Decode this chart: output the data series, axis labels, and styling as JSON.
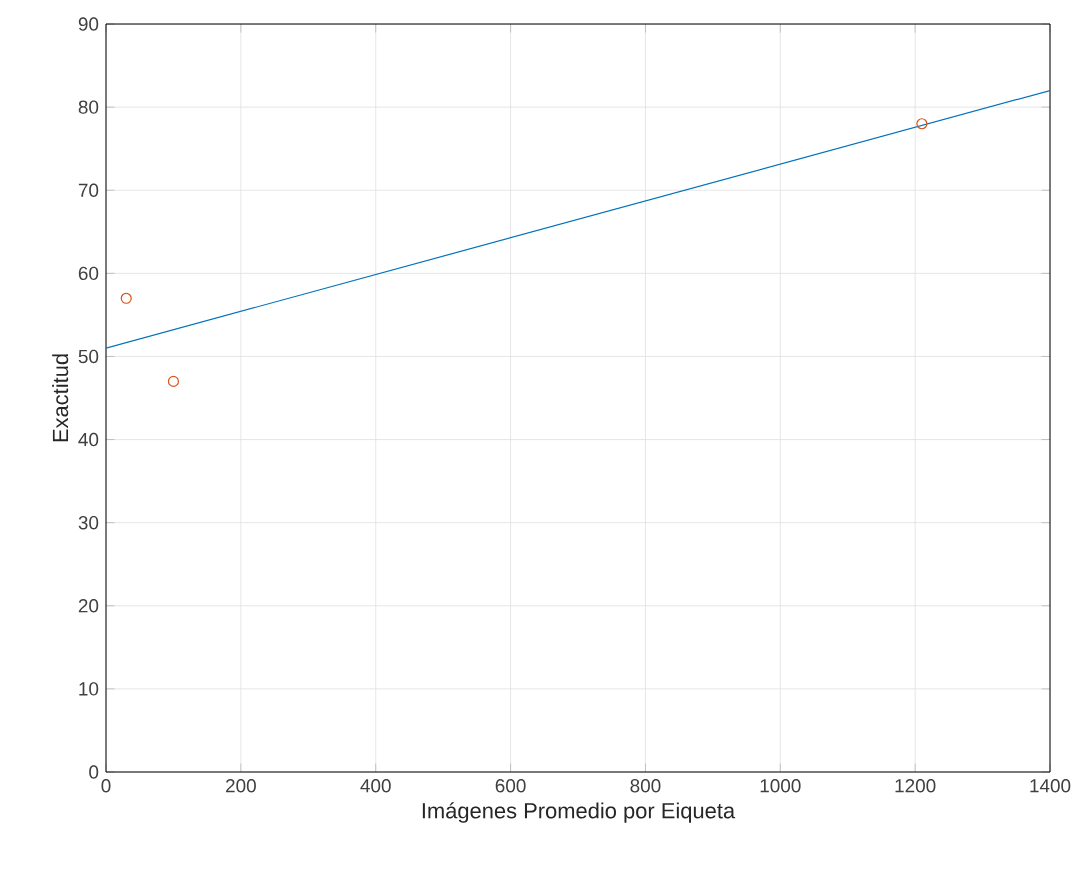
{
  "chart_data": {
    "type": "scatter",
    "xlabel": "Imágenes Promedio por Eiqueta",
    "ylabel": "Exactitud",
    "xlim": [
      0,
      1400
    ],
    "ylim": [
      0,
      90
    ],
    "xticks": [
      0,
      200,
      400,
      600,
      800,
      1000,
      1200,
      1400
    ],
    "yticks": [
      0,
      10,
      20,
      30,
      40,
      50,
      60,
      70,
      80,
      90
    ],
    "grid": true,
    "series": [
      {
        "color": "#d95319",
        "marker": "circle",
        "x": [
          30,
          100,
          1210
        ],
        "values": [
          57,
          47,
          78
        ]
      },
      {
        "type": "line",
        "color": "#0072bd",
        "line_style": "solid",
        "x": [
          0,
          1400
        ],
        "values": [
          51,
          82
        ]
      }
    ]
  }
}
